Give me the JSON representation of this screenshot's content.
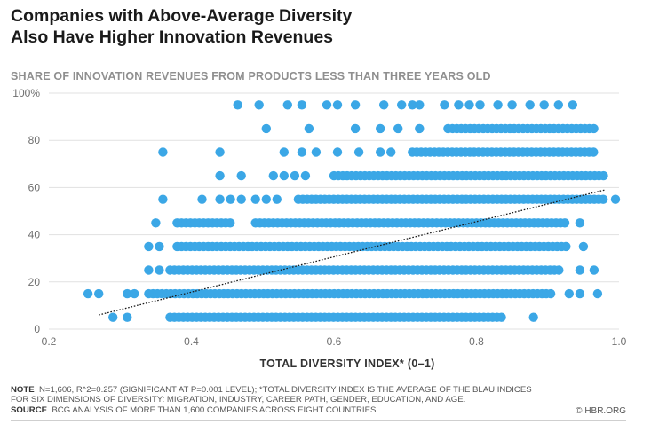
{
  "colors": {
    "points": "#3ba7e6",
    "trend": "#1a1a1a",
    "grid": "#e1e1e1"
  },
  "header": {
    "title_line1": "Companies with Above-Average Diversity",
    "title_line2": "Also Have Higher Innovation Revenues",
    "subtitle": "SHARE OF INNOVATION REVENUES FROM PRODUCTS LESS THAN THREE YEARS OLD"
  },
  "footer": {
    "note_label": "NOTE",
    "note_text": "N=1,606, R^2=0.257 (SIGNIFICANT AT P=0.001 LEVEL); *TOTAL DIVERSITY INDEX IS THE AVERAGE OF THE BLAU INDICES FOR SIX DIMENSIONS OF DIVERSITY: MIGRATION, INDUSTRY, CAREER PATH, GENDER, EDUCATION, AND AGE.",
    "source_label": "SOURCE",
    "source_text": "BCG ANALYSIS OF MORE THAN 1,600 COMPANIES ACROSS EIGHT COUNTRIES",
    "credit": "© HBR.ORG"
  },
  "chart_data": {
    "type": "scatter",
    "xlabel": "TOTAL DIVERSITY INDEX* (0–1)",
    "ylabel": "",
    "xlim": [
      0.2,
      1.0
    ],
    "ylim": [
      0,
      100
    ],
    "x_ticks": [
      "0.2",
      "0.4",
      "0.6",
      "0.8",
      "1.0"
    ],
    "x_tick_values": [
      0.2,
      0.4,
      0.6,
      0.8,
      1.0
    ],
    "y_ticks": [
      "0",
      "20",
      "40",
      "60",
      "80",
      "100%"
    ],
    "y_tick_values": [
      0,
      20,
      40,
      60,
      80,
      100
    ],
    "grid": "horizontal",
    "trendline": {
      "x": [
        0.27,
        0.98
      ],
      "y": [
        6,
        59
      ]
    },
    "bands": [
      {
        "y": 5,
        "x_ranges": [
          [
            0.37,
            0.84
          ]
        ],
        "extra_x": [
          0.29,
          0.31,
          0.88
        ]
      },
      {
        "y": 15,
        "x_ranges": [
          [
            0.34,
            0.91
          ]
        ],
        "extra_x": [
          0.255,
          0.27,
          0.31,
          0.32,
          0.93,
          0.945,
          0.97
        ]
      },
      {
        "y": 25,
        "x_ranges": [
          [
            0.37,
            0.92
          ]
        ],
        "extra_x": [
          0.34,
          0.355,
          0.945,
          0.965
        ]
      },
      {
        "y": 35,
        "x_ranges": [
          [
            0.38,
            0.93
          ]
        ],
        "extra_x": [
          0.34,
          0.355,
          0.95
        ]
      },
      {
        "y": 45,
        "x_ranges": [
          [
            0.38,
            0.455
          ],
          [
            0.49,
            0.93
          ]
        ],
        "extra_x": [
          0.35,
          0.945
        ]
      },
      {
        "y": 55,
        "x_ranges": [
          [
            0.55,
            0.98
          ]
        ],
        "extra_x": [
          0.36,
          0.415,
          0.44,
          0.455,
          0.47,
          0.49,
          0.505,
          0.52,
          0.995
        ]
      },
      {
        "y": 65,
        "x_ranges": [
          [
            0.6,
            0.98
          ]
        ],
        "extra_x": [
          0.44,
          0.47,
          0.515,
          0.53,
          0.545,
          0.56
        ]
      },
      {
        "y": 75,
        "x_ranges": [
          [
            0.71,
            0.97
          ]
        ],
        "extra_x": [
          0.36,
          0.44,
          0.53,
          0.555,
          0.575,
          0.605,
          0.635,
          0.665,
          0.68
        ]
      },
      {
        "y": 85,
        "x_ranges": [
          [
            0.76,
            0.965
          ]
        ],
        "extra_x": [
          0.505,
          0.565,
          0.63,
          0.665,
          0.69,
          0.72
        ]
      },
      {
        "y": 95,
        "x_ranges": [],
        "extra_x": [
          0.465,
          0.495,
          0.535,
          0.555,
          0.59,
          0.605,
          0.63,
          0.67,
          0.695,
          0.71,
          0.72,
          0.755,
          0.775,
          0.79,
          0.805,
          0.83,
          0.85,
          0.875,
          0.895,
          0.915,
          0.935
        ]
      }
    ]
  }
}
